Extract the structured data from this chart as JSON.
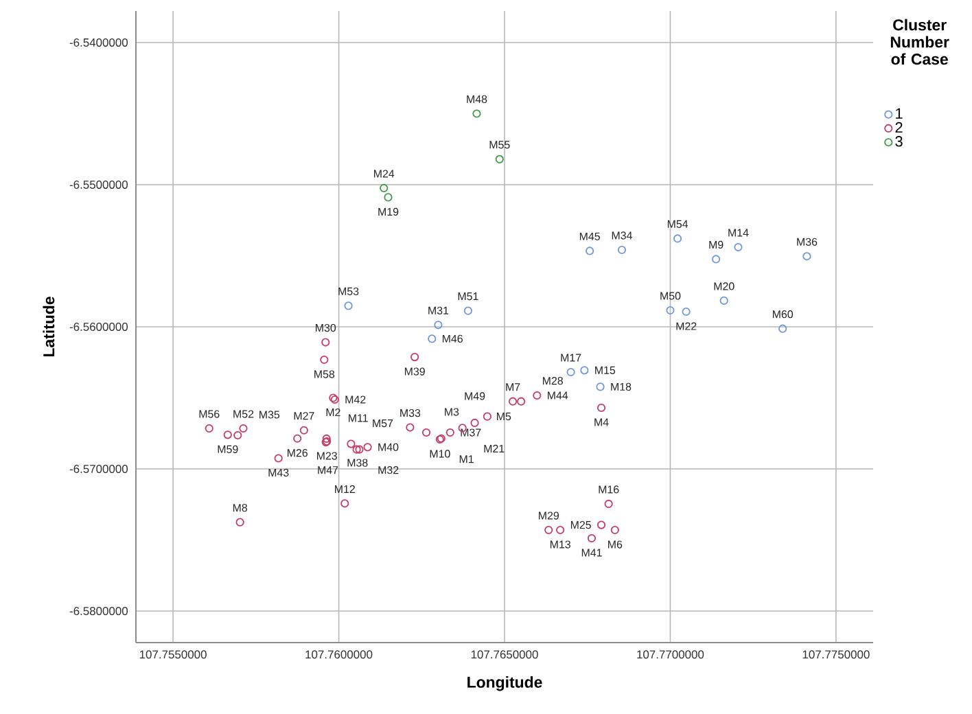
{
  "chart_data": {
    "type": "scatter",
    "xlabel": "Longitude",
    "ylabel": "Latitude",
    "legend_title": "Cluster Number of Case",
    "legend": "top right",
    "grid": true,
    "marker": "circle",
    "xlim": [
      107.75388,
      107.77612
    ],
    "ylim": [
      -6.58222,
      -6.53778
    ],
    "xticks": [
      {
        "value": 107.755,
        "label": "107.7550000"
      },
      {
        "value": 107.76,
        "label": "107.7600000"
      },
      {
        "value": 107.765,
        "label": "107.7650000"
      },
      {
        "value": 107.77,
        "label": "107.7700000"
      },
      {
        "value": 107.775,
        "label": "107.7750000"
      }
    ],
    "yticks": [
      {
        "value": -6.54,
        "label": "-6.5400000"
      },
      {
        "value": -6.55,
        "label": "-6.5500000"
      },
      {
        "value": -6.56,
        "label": "-6.5600000"
      },
      {
        "value": -6.57,
        "label": "-6.5700000"
      },
      {
        "value": -6.58,
        "label": "-6.5800000"
      }
    ],
    "series": [
      {
        "name": "1",
        "color": "#6f97d9",
        "x": [
          107.76757,
          107.76854,
          107.77022,
          107.77138,
          107.77205,
          107.77412,
          107.77162,
          107.77,
          107.77048,
          107.77339,
          107.7639,
          107.76029,
          107.763,
          107.76281,
          107.767,
          107.76741,
          107.76789
        ],
        "values": [
          -6.55466,
          -6.55459,
          -6.55379,
          -6.55524,
          -6.5544,
          -6.55504,
          -6.55816,
          -6.55884,
          -6.55894,
          -6.56013,
          -6.55887,
          -6.55852,
          -6.55987,
          -6.56084,
          -6.56319,
          -6.56306,
          -6.56422
        ]
      },
      {
        "name": "2",
        "color": "#c73a63",
        "x": [
          107.76792,
          107.7596,
          107.75956,
          107.76229,
          107.75983,
          107.75988,
          107.75609,
          107.75665,
          107.75695,
          107.75712,
          107.75895,
          107.75875,
          107.75818,
          107.75963,
          107.75964,
          107.75961,
          107.76037,
          107.76054,
          107.76062,
          107.76087,
          107.76018,
          107.75702,
          107.76215,
          107.76264,
          107.76305,
          107.76309,
          107.76336,
          107.76373,
          107.7641,
          107.76448,
          107.76525,
          107.7655,
          107.76598,
          107.76814,
          107.76633,
          107.76668,
          107.76792,
          107.76833,
          107.76763
        ],
        "values": [
          -6.5657,
          -6.56109,
          -6.56232,
          -6.56213,
          -6.565,
          -6.56512,
          -6.56715,
          -6.5676,
          -6.56763,
          -6.56715,
          -6.56728,
          -6.56786,
          -6.56925,
          -6.56787,
          -6.56807,
          -6.56812,
          -6.56824,
          -6.56863,
          -6.56863,
          -6.56847,
          -6.57243,
          -6.57375,
          -6.56708,
          -6.56744,
          -6.56792,
          -6.56786,
          -6.56744,
          -6.56712,
          -6.56676,
          -6.56631,
          -6.56525,
          -6.56525,
          -6.56483,
          -6.57246,
          -6.5743,
          -6.5743,
          -6.57394,
          -6.5743,
          -6.57488
        ]
      },
      {
        "name": "3",
        "color": "#3f9a44",
        "x": [
          107.76416,
          107.76485,
          107.76136,
          107.76149
        ],
        "values": [
          -6.545,
          -6.54821,
          -6.55024,
          -6.55089
        ]
      }
    ],
    "annotations": [
      {
        "text": "M45",
        "x": 107.76757,
        "y": -6.55466
      },
      {
        "text": "M34",
        "x": 107.76854,
        "y": -6.55459
      },
      {
        "text": "M54",
        "x": 107.77022,
        "y": -6.55379
      },
      {
        "text": "M9",
        "x": 107.77138,
        "y": -6.55524
      },
      {
        "text": "M14",
        "x": 107.77205,
        "y": -6.5544
      },
      {
        "text": "M36",
        "x": 107.77412,
        "y": -6.55504
      },
      {
        "text": "M20",
        "x": 107.77162,
        "y": -6.55816
      },
      {
        "text": "M50",
        "x": 107.77,
        "y": -6.55884
      },
      {
        "text": "M22",
        "x": 107.77048,
        "y": -6.55894
      },
      {
        "text": "M60",
        "x": 107.77339,
        "y": -6.56013
      },
      {
        "text": "M51",
        "x": 107.7639,
        "y": -6.55887
      },
      {
        "text": "M53",
        "x": 107.76029,
        "y": -6.55852
      },
      {
        "text": "M31",
        "x": 107.763,
        "y": -6.55987
      },
      {
        "text": "M46",
        "x": 107.76281,
        "y": -6.56084
      },
      {
        "text": "M17",
        "x": 107.767,
        "y": -6.56319
      },
      {
        "text": "M15",
        "x": 107.76741,
        "y": -6.56306
      },
      {
        "text": "M18",
        "x": 107.76789,
        "y": -6.56422
      },
      {
        "text": "M4",
        "x": 107.76792,
        "y": -6.5657
      },
      {
        "text": "M30",
        "x": 107.7596,
        "y": -6.56109
      },
      {
        "text": "M58",
        "x": 107.75956,
        "y": -6.56232
      },
      {
        "text": "M39",
        "x": 107.76229,
        "y": -6.56213
      },
      {
        "text": "M2",
        "x": 107.75983,
        "y": -6.565
      },
      {
        "text": "M42",
        "x": 107.75988,
        "y": -6.56512
      },
      {
        "text": "M56",
        "x": 107.75609,
        "y": -6.56715
      },
      {
        "text": "M59",
        "x": 107.75665,
        "y": -6.5676
      },
      {
        "text": "M35",
        "x": 107.75695,
        "y": -6.56763
      },
      {
        "text": "M52",
        "x": 107.75712,
        "y": -6.56715
      },
      {
        "text": "M27",
        "x": 107.75895,
        "y": -6.56728
      },
      {
        "text": "M26",
        "x": 107.75875,
        "y": -6.56786
      },
      {
        "text": "M43",
        "x": 107.75818,
        "y": -6.56925
      },
      {
        "text": "M11",
        "x": 107.75963,
        "y": -6.56787
      },
      {
        "text": "M23",
        "x": 107.75964,
        "y": -6.56807
      },
      {
        "text": "M38",
        "x": 107.75961,
        "y": -6.56812
      },
      {
        "text": "M57",
        "x": 107.76037,
        "y": -6.56824
      },
      {
        "text": "M32",
        "x": 107.76054,
        "y": -6.56863
      },
      {
        "text": "M47",
        "x": 107.76062,
        "y": -6.56863
      },
      {
        "text": "M40",
        "x": 107.76087,
        "y": -6.56847
      },
      {
        "text": "M12",
        "x": 107.76018,
        "y": -6.57243
      },
      {
        "text": "M8",
        "x": 107.75702,
        "y": -6.57375
      },
      {
        "text": "M33",
        "x": 107.76215,
        "y": -6.56708
      },
      {
        "text": "M3",
        "x": 107.76264,
        "y": -6.56744
      },
      {
        "text": "M10",
        "x": 107.76305,
        "y": -6.56792
      },
      {
        "text": "M1",
        "x": 107.76309,
        "y": -6.56786
      },
      {
        "text": "M37",
        "x": 107.76336,
        "y": -6.56744
      },
      {
        "text": "M21",
        "x": 107.76373,
        "y": -6.56712
      },
      {
        "text": "M49",
        "x": 107.7641,
        "y": -6.56676
      },
      {
        "text": "M5",
        "x": 107.76448,
        "y": -6.56631
      },
      {
        "text": "M7",
        "x": 107.76525,
        "y": -6.56525
      },
      {
        "text": "M28",
        "x": 107.7655,
        "y": -6.56525
      },
      {
        "text": "M44",
        "x": 107.76598,
        "y": -6.56483
      },
      {
        "text": "M16",
        "x": 107.76814,
        "y": -6.57246
      },
      {
        "text": "M29",
        "x": 107.76633,
        "y": -6.5743
      },
      {
        "text": "M13",
        "x": 107.76668,
        "y": -6.5743
      },
      {
        "text": "M25",
        "x": 107.76792,
        "y": -6.57394
      },
      {
        "text": "M6",
        "x": 107.76833,
        "y": -6.5743
      },
      {
        "text": "M41",
        "x": 107.76763,
        "y": -6.57488
      },
      {
        "text": "M48",
        "x": 107.76416,
        "y": -6.545
      },
      {
        "text": "M55",
        "x": 107.76485,
        "y": -6.54821
      },
      {
        "text": "M24",
        "x": 107.76136,
        "y": -6.55024
      },
      {
        "text": "M19",
        "x": 107.76149,
        "y": -6.55089
      }
    ]
  }
}
